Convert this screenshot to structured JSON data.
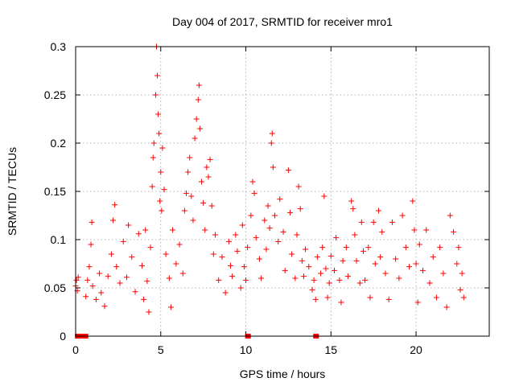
{
  "chart_data": {
    "type": "scatter",
    "title": "Day 004 of 2017, SRMTID for receiver mro1",
    "xlabel": "GPS time / hours",
    "ylabel": "SRMTID / TECUs",
    "xlim": [
      0,
      24.3
    ],
    "ylim": [
      0,
      0.3
    ],
    "x_ticks": [
      0,
      5,
      10,
      15,
      20
    ],
    "x_tick_labels": [
      "0",
      "5",
      "10",
      "15",
      "20"
    ],
    "y_ticks": [
      0,
      0.05,
      0.1,
      0.15,
      0.2,
      0.25,
      0.3
    ],
    "y_tick_labels": [
      "0",
      "0.05",
      "0.1",
      "0.15",
      "0.2",
      "0.25",
      "0.3"
    ],
    "grid": true,
    "series": [
      {
        "name": "SRMTID",
        "marker": "plus",
        "color": "#ff0000",
        "sampled_points": [
          [
            0.0,
            0.052
          ],
          [
            0.05,
            0.058
          ],
          [
            0.1,
            0.047
          ],
          [
            0.15,
            0.061
          ],
          [
            0.6,
            0.041
          ],
          [
            0.7,
            0.058
          ],
          [
            0.8,
            0.072
          ],
          [
            0.9,
            0.095
          ],
          [
            0.95,
            0.118
          ],
          [
            1.0,
            0.052
          ],
          [
            1.2,
            0.038
          ],
          [
            1.4,
            0.065
          ],
          [
            1.5,
            0.045
          ],
          [
            1.7,
            0.031
          ],
          [
            1.9,
            0.062
          ],
          [
            2.1,
            0.085
          ],
          [
            2.2,
            0.12
          ],
          [
            2.3,
            0.136
          ],
          [
            2.4,
            0.072
          ],
          [
            2.6,
            0.055
          ],
          [
            2.8,
            0.098
          ],
          [
            3.0,
            0.061
          ],
          [
            3.1,
            0.115
          ],
          [
            3.3,
            0.082
          ],
          [
            3.5,
            0.046
          ],
          [
            3.7,
            0.106
          ],
          [
            3.9,
            0.073
          ],
          [
            4.0,
            0.038
          ],
          [
            4.1,
            0.11
          ],
          [
            4.2,
            0.057
          ],
          [
            4.3,
            0.025
          ],
          [
            4.4,
            0.092
          ],
          [
            4.5,
            0.155
          ],
          [
            4.55,
            0.185
          ],
          [
            4.6,
            0.2
          ],
          [
            4.7,
            0.25
          ],
          [
            4.75,
            0.3
          ],
          [
            4.8,
            0.27
          ],
          [
            4.85,
            0.23
          ],
          [
            4.9,
            0.21
          ],
          [
            4.95,
            0.14
          ],
          [
            5.0,
            0.17
          ],
          [
            5.05,
            0.13
          ],
          [
            5.1,
            0.195
          ],
          [
            5.2,
            0.152
          ],
          [
            5.3,
            0.085
          ],
          [
            5.5,
            0.06
          ],
          [
            5.6,
            0.03
          ],
          [
            5.7,
            0.11
          ],
          [
            5.9,
            0.075
          ],
          [
            6.1,
            0.095
          ],
          [
            6.3,
            0.065
          ],
          [
            6.4,
            0.13
          ],
          [
            6.5,
            0.148
          ],
          [
            6.6,
            0.17
          ],
          [
            6.7,
            0.185
          ],
          [
            6.8,
            0.145
          ],
          [
            6.9,
            0.12
          ],
          [
            7.0,
            0.205
          ],
          [
            7.1,
            0.225
          ],
          [
            7.2,
            0.245
          ],
          [
            7.25,
            0.26
          ],
          [
            7.3,
            0.215
          ],
          [
            7.4,
            0.16
          ],
          [
            7.5,
            0.138
          ],
          [
            7.6,
            0.11
          ],
          [
            7.7,
            0.175
          ],
          [
            7.8,
            0.165
          ],
          [
            7.9,
            0.183
          ],
          [
            8.0,
            0.135
          ],
          [
            8.1,
            0.085
          ],
          [
            8.2,
            0.105
          ],
          [
            8.4,
            0.058
          ],
          [
            8.6,
            0.082
          ],
          [
            8.8,
            0.045
          ],
          [
            9.0,
            0.098
          ],
          [
            9.1,
            0.073
          ],
          [
            9.2,
            0.062
          ],
          [
            9.4,
            0.105
          ],
          [
            9.5,
            0.088
          ],
          [
            9.7,
            0.05
          ],
          [
            9.8,
            0.115
          ],
          [
            9.9,
            0.072
          ],
          [
            10.0,
            0.058
          ],
          [
            10.1,
            0.092
          ],
          [
            10.3,
            0.125
          ],
          [
            10.4,
            0.16
          ],
          [
            10.5,
            0.148
          ],
          [
            10.6,
            0.102
          ],
          [
            10.8,
            0.08
          ],
          [
            10.9,
            0.06
          ],
          [
            11.1,
            0.12
          ],
          [
            11.2,
            0.09
          ],
          [
            11.3,
            0.135
          ],
          [
            11.4,
            0.112
          ],
          [
            11.5,
            0.2
          ],
          [
            11.55,
            0.21
          ],
          [
            11.6,
            0.175
          ],
          [
            11.7,
            0.125
          ],
          [
            11.9,
            0.098
          ],
          [
            12.0,
            0.142
          ],
          [
            12.2,
            0.108
          ],
          [
            12.3,
            0.068
          ],
          [
            12.5,
            0.172
          ],
          [
            12.6,
            0.128
          ],
          [
            12.7,
            0.085
          ],
          [
            12.9,
            0.06
          ],
          [
            13.0,
            0.105
          ],
          [
            13.1,
            0.155
          ],
          [
            13.2,
            0.132
          ],
          [
            13.3,
            0.078
          ],
          [
            13.4,
            0.062
          ],
          [
            13.5,
            0.09
          ],
          [
            13.7,
            0.072
          ],
          [
            13.9,
            0.048
          ],
          [
            14.0,
            0.058
          ],
          [
            14.1,
            0.038
          ],
          [
            14.2,
            0.082
          ],
          [
            14.4,
            0.065
          ],
          [
            14.5,
            0.092
          ],
          [
            14.6,
            0.145
          ],
          [
            14.7,
            0.07
          ],
          [
            14.8,
            0.04
          ],
          [
            14.9,
            0.055
          ],
          [
            15.0,
            0.083
          ],
          [
            15.2,
            0.068
          ],
          [
            15.3,
            0.102
          ],
          [
            15.5,
            0.058
          ],
          [
            15.6,
            0.035
          ],
          [
            15.7,
            0.078
          ],
          [
            15.9,
            0.092
          ],
          [
            16.0,
            0.062
          ],
          [
            16.2,
            0.14
          ],
          [
            16.3,
            0.132
          ],
          [
            16.4,
            0.105
          ],
          [
            16.5,
            0.078
          ],
          [
            16.7,
            0.055
          ],
          [
            16.8,
            0.118
          ],
          [
            16.9,
            0.088
          ],
          [
            17.0,
            0.058
          ],
          [
            17.2,
            0.092
          ],
          [
            17.3,
            0.04
          ],
          [
            17.5,
            0.118
          ],
          [
            17.6,
            0.075
          ],
          [
            17.8,
            0.13
          ],
          [
            17.9,
            0.082
          ],
          [
            18.0,
            0.108
          ],
          [
            18.2,
            0.065
          ],
          [
            18.4,
            0.038
          ],
          [
            18.6,
            0.118
          ],
          [
            18.8,
            0.08
          ],
          [
            19.0,
            0.06
          ],
          [
            19.2,
            0.125
          ],
          [
            19.4,
            0.092
          ],
          [
            19.6,
            0.072
          ],
          [
            19.8,
            0.14
          ],
          [
            19.9,
            0.11
          ],
          [
            20.0,
            0.075
          ],
          [
            20.1,
            0.035
          ],
          [
            20.2,
            0.095
          ],
          [
            20.4,
            0.068
          ],
          [
            20.6,
            0.11
          ],
          [
            20.8,
            0.055
          ],
          [
            21.0,
            0.082
          ],
          [
            21.2,
            0.04
          ],
          [
            21.4,
            0.092
          ],
          [
            21.6,
            0.065
          ],
          [
            21.8,
            0.03
          ],
          [
            22.0,
            0.125
          ],
          [
            22.2,
            0.108
          ],
          [
            22.4,
            0.075
          ],
          [
            22.5,
            0.092
          ],
          [
            22.6,
            0.048
          ],
          [
            22.7,
            0.065
          ],
          [
            22.8,
            0.04
          ]
        ],
        "baseline_points": [
          0.1,
          0.3,
          0.5,
          0.6,
          10.1,
          10.15,
          14.1,
          14.15
        ]
      }
    ]
  }
}
